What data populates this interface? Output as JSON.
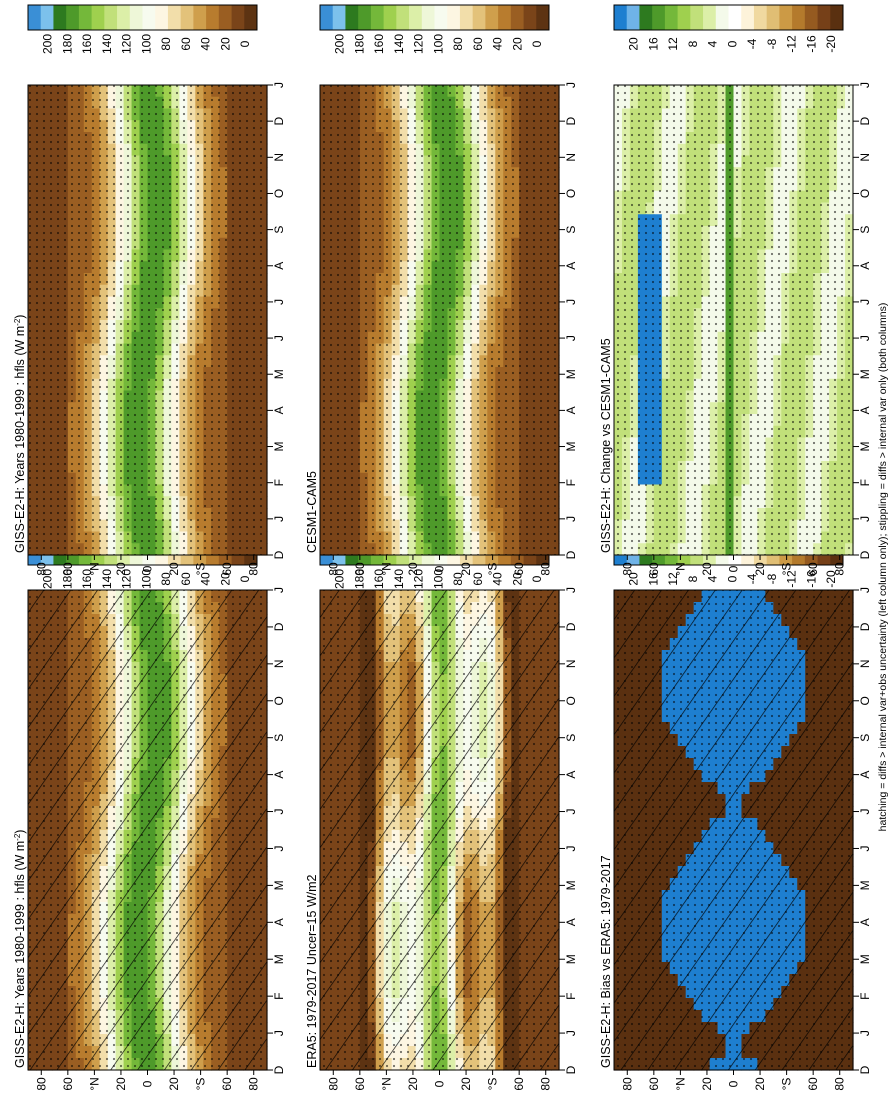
{
  "footer_note": "hatching = diffs > internal var+obs uncertainty (left column only); stippling = diffs > internal var only (both columns)",
  "chart_data": [
    {
      "type": "heatmap",
      "title": "GISS-E2-H: Years 1980-1999 : hfls (W m",
      "title_sup": "-2",
      "title_end": ")",
      "x_tick_labels": [
        "D",
        "J",
        "F",
        "M",
        "A",
        "M",
        "J",
        "J",
        "A",
        "S",
        "O",
        "N",
        "D",
        "J"
      ],
      "y_tick_labels": [
        "80",
        "60",
        "°N",
        "20",
        "0",
        "20",
        "°S",
        "60",
        "80"
      ],
      "colorbar_labels": [
        "200",
        "180",
        "160",
        "140",
        "120",
        "100",
        "80",
        "60",
        "40",
        "20",
        "0"
      ],
      "palette": "flux",
      "field": "flux",
      "hatched": true,
      "stippled": true
    },
    {
      "type": "heatmap",
      "title": "GISS-E2-H: Years 1980-1999 : hfls (W m",
      "title_sup": "-2",
      "title_end": ")",
      "x_tick_labels": [
        "D",
        "J",
        "F",
        "M",
        "A",
        "M",
        "J",
        "J",
        "A",
        "S",
        "O",
        "N",
        "D",
        "J"
      ],
      "y_tick_labels": [
        "80",
        "60",
        "°N",
        "20",
        "0",
        "20",
        "°S",
        "60",
        "80"
      ],
      "colorbar_labels": [
        "200",
        "180",
        "160",
        "140",
        "120",
        "100",
        "80",
        "60",
        "40",
        "20",
        "0"
      ],
      "palette": "flux",
      "field": "flux",
      "hatched": false,
      "stippled": true
    },
    {
      "type": "heatmap",
      "title": "ERA5: 1979-2017 Uncer=15 W/m2",
      "title_sup": "",
      "title_end": "",
      "x_tick_labels": [
        "D",
        "J",
        "F",
        "M",
        "A",
        "M",
        "J",
        "J",
        "A",
        "S",
        "O",
        "N",
        "D",
        "J"
      ],
      "y_tick_labels": [
        "80",
        "60",
        "°N",
        "20",
        "0",
        "20",
        "°S",
        "60",
        "80"
      ],
      "colorbar_labels": [
        "200",
        "180",
        "160",
        "140",
        "120",
        "100",
        "80",
        "60",
        "40",
        "20",
        "0"
      ],
      "palette": "flux",
      "field": "era",
      "hatched": true,
      "stippled": true
    },
    {
      "type": "heatmap",
      "title": "CESM1-CAM5",
      "title_sup": "",
      "title_end": "",
      "x_tick_labels": [
        "D",
        "J",
        "F",
        "M",
        "A",
        "M",
        "J",
        "J",
        "A",
        "S",
        "O",
        "N",
        "D",
        "J"
      ],
      "y_tick_labels": [
        "80",
        "60",
        "°N",
        "20",
        "0",
        "20",
        "°S",
        "60",
        "80"
      ],
      "colorbar_labels": [
        "200",
        "180",
        "160",
        "140",
        "120",
        "100",
        "80",
        "60",
        "40",
        "20",
        "0"
      ],
      "palette": "flux",
      "field": "flux2",
      "hatched": false,
      "stippled": true
    },
    {
      "type": "heatmap",
      "title": "GISS-E2-H: Bias vs ERA5: 1979-2017",
      "title_sup": "",
      "title_end": "",
      "x_tick_labels": [
        "D",
        "J",
        "F",
        "M",
        "A",
        "M",
        "J",
        "J",
        "A",
        "S",
        "O",
        "N",
        "D",
        "J"
      ],
      "y_tick_labels": [
        "80",
        "60",
        "°N",
        "20",
        "0",
        "20",
        "°S",
        "60",
        "80"
      ],
      "colorbar_labels": [
        "20",
        "16",
        "12",
        "8",
        "4",
        "0",
        "-4",
        "-8",
        "-12",
        "-16",
        "-20"
      ],
      "palette": "diff",
      "field": "bias",
      "hatched": true,
      "stippled": true
    },
    {
      "type": "heatmap",
      "title": "GISS-E2-H: Change vs CESM1-CAM5",
      "title_sup": "",
      "title_end": "",
      "x_tick_labels": [
        "D",
        "J",
        "F",
        "M",
        "A",
        "M",
        "J",
        "J",
        "A",
        "S",
        "O",
        "N",
        "D",
        "J"
      ],
      "y_tick_labels": [
        "80",
        "60",
        "°N",
        "20",
        "0",
        "20",
        "°S",
        "60",
        "80"
      ],
      "colorbar_labels": [
        "20",
        "16",
        "12",
        "8",
        "4",
        "0",
        "-4",
        "-8",
        "-12",
        "-16",
        "-20"
      ],
      "palette": "diff",
      "field": "change",
      "hatched": false,
      "stippled": true
    }
  ],
  "colors": {
    "flux": [
      "#3a8fd6",
      "#7cc1ec",
      "#2d7a1f",
      "#4e9a2a",
      "#74b83a",
      "#9fd04e",
      "#c1e07a",
      "#dcefa8",
      "#eef7d8",
      "#f7fbef",
      "#fdf6e2",
      "#f2deaa",
      "#e3c27a",
      "#cf9f4c",
      "#b87c2e",
      "#9a5e22",
      "#7a4419",
      "#5d3312"
    ],
    "diff": [
      "#1e7fd0",
      "#6fb3e8",
      "#2d7a1f",
      "#4e9a2a",
      "#74b83a",
      "#9fd04e",
      "#c1e07a",
      "#dcefa8",
      "#f4faea",
      "#ffffff",
      "#fdf3da",
      "#f0d9a0",
      "#e0be74",
      "#cc9a45",
      "#b47a2c",
      "#955a20",
      "#764018",
      "#5a3010"
    ]
  }
}
